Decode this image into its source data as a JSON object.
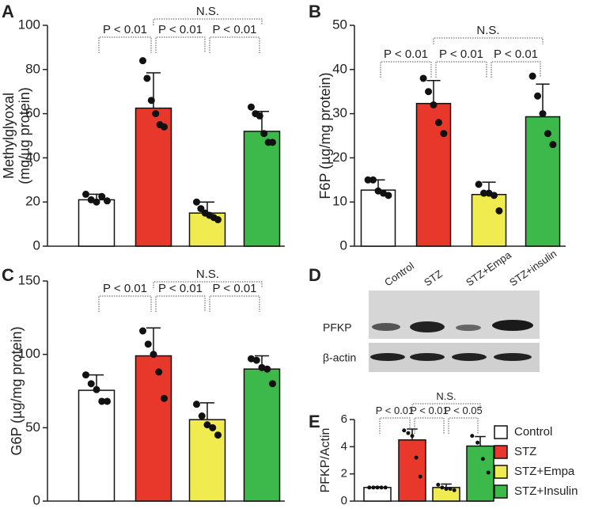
{
  "chart_data": [
    {
      "type": "bar",
      "title": "A",
      "ylabel": [
        "Methylglyoxal",
        "(mg/µg protein)"
      ],
      "categories": [
        null,
        null,
        null,
        null
      ],
      "colors": [
        "#ffffff",
        "#e8382b",
        "#f0eb4e",
        "#3cb94a"
      ],
      "values": [
        21,
        62.5,
        15,
        52
      ],
      "errors": [
        2.5,
        16,
        5,
        9
      ],
      "points": [
        [
          23.5,
          21,
          20,
          22.5,
          20.5
        ],
        [
          84,
          76,
          66,
          60,
          55,
          54
        ],
        [
          20,
          17,
          15,
          14,
          13,
          12
        ],
        [
          63,
          60,
          59,
          51,
          47,
          47
        ]
      ],
      "ylim": [
        0,
        100
      ],
      "yticks": [
        0,
        20,
        40,
        60,
        80,
        100
      ],
      "annotations": [
        "P < 0.01",
        "P < 0.01",
        "P < 0.01",
        "N.S."
      ]
    },
    {
      "type": "bar",
      "title": "B",
      "ylabel": [
        "F6P (µg/mg protein)"
      ],
      "categories": [
        null,
        null,
        null,
        null
      ],
      "colors": [
        "#ffffff",
        "#e8382b",
        "#f0eb4e",
        "#3cb94a"
      ],
      "values": [
        12.7,
        32.3,
        11.7,
        29.3
      ],
      "errors": [
        2.3,
        5.2,
        2.8,
        7.4
      ],
      "points": [
        [
          15,
          15,
          12.5,
          12,
          11.5
        ],
        [
          38,
          35,
          32,
          28,
          25.5
        ],
        [
          14,
          12,
          12,
          11.5,
          8
        ],
        [
          38.5,
          34,
          30,
          25.5,
          23
        ]
      ],
      "ylim": [
        0,
        50
      ],
      "yticks": [
        0,
        10,
        20,
        30,
        40,
        50
      ],
      "annotations": [
        "P < 0.01",
        "P < 0.01",
        "P < 0.01",
        "N.S."
      ]
    },
    {
      "type": "bar",
      "title": "C",
      "ylabel": [
        "G6P (µg/mg protein)"
      ],
      "categories": [
        null,
        null,
        null,
        null
      ],
      "colors": [
        "#ffffff",
        "#e8382b",
        "#f0eb4e",
        "#3cb94a"
      ],
      "values": [
        75.5,
        99,
        55.5,
        90
      ],
      "errors": [
        10.5,
        19,
        11.5,
        9
      ],
      "points": [
        [
          86,
          80,
          76,
          68,
          68
        ],
        [
          116,
          107,
          100,
          88,
          70
        ],
        [
          66,
          58,
          52,
          50,
          45
        ],
        [
          97,
          96,
          91,
          90,
          80
        ]
      ],
      "ylim": [
        0,
        150
      ],
      "yticks": [
        0,
        50,
        100,
        150
      ],
      "annotations": [
        "P < 0.01",
        "P < 0.01",
        "P < 0.01",
        "N.S."
      ]
    },
    {
      "type": "bar",
      "title": "E",
      "ylabel": [
        "PFKP/Actin"
      ],
      "categories": [
        null,
        null,
        null,
        null
      ],
      "colors": [
        "#ffffff",
        "#e8382b",
        "#f0eb4e",
        "#3cb94a"
      ],
      "values": [
        1,
        4.5,
        1,
        4.05
      ],
      "errors": [
        0.05,
        0.8,
        0.25,
        0.7
      ],
      "points": [
        [
          1,
          1,
          1,
          1,
          1
        ],
        [
          5.2,
          5,
          4.8,
          3.2,
          1.8
        ],
        [
          1.2,
          1,
          0.9,
          0.9,
          0.8
        ],
        [
          4.8,
          4.3,
          3.1,
          2.1
        ]
      ],
      "ylim": [
        0,
        6
      ],
      "yticks": [
        0,
        2,
        4,
        6
      ],
      "annotations": [
        "P < 0.01",
        "P < 0.01",
        "P < 0.05",
        "N.S."
      ],
      "legend": [
        "Control",
        "STZ",
        "STZ+Empa",
        "STZ+Insulin"
      ]
    }
  ],
  "blot": {
    "title": "D",
    "lanes": [
      "Control",
      "STZ",
      "STZ+Empa",
      "STZ+insulin"
    ],
    "rows": [
      "PFKP",
      "β-actin"
    ]
  }
}
